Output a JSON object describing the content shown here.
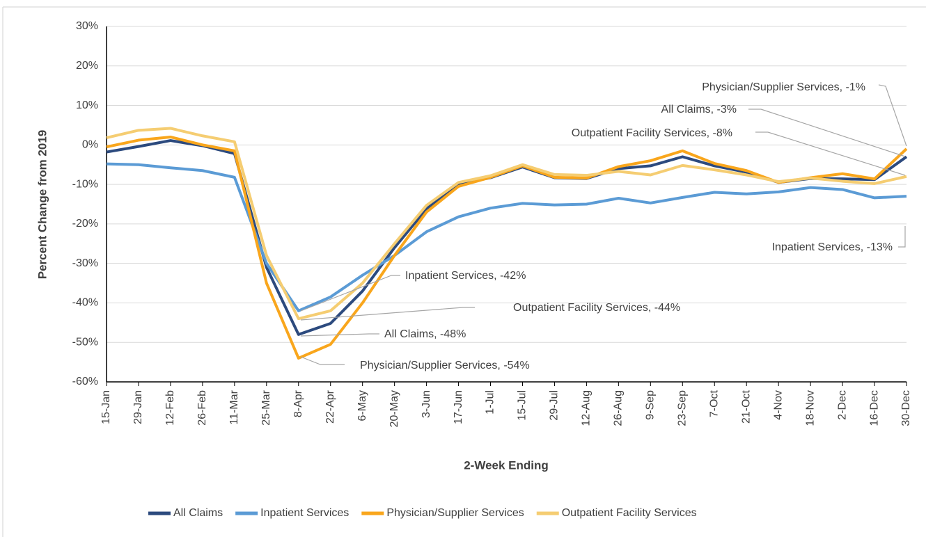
{
  "chart_data": {
    "type": "line",
    "y_label": "Percent Change from 2019",
    "x_label": "2-Week Ending",
    "categories": [
      "15-Jan",
      "29-Jan",
      "12-Feb",
      "26-Feb",
      "11-Mar",
      "25-Mar",
      "8-Apr",
      "22-Apr",
      "6-May",
      "20-May",
      "3-Jun",
      "17-Jun",
      "1-Jul",
      "15-Jul",
      "29-Jul",
      "12-Aug",
      "26-Aug",
      "9-Sep",
      "23-Sep",
      "7-Oct",
      "21-Oct",
      "4-Nov",
      "18-Nov",
      "2-Dec",
      "16-Dec",
      "30-Dec"
    ],
    "series": [
      {
        "name": "All Claims",
        "color": "#2c4a7e",
        "values": [
          -1.8,
          -0.4,
          1.1,
          -0.2,
          -2.2,
          -31,
          -48,
          -45.2,
          -37,
          -26,
          -16.2,
          -10,
          -8.3,
          -5.6,
          -8.3,
          -8.5,
          -6,
          -5.3,
          -3,
          -5.3,
          -6.9,
          -9.5,
          -8.5,
          -8.6,
          -8.8,
          -3
        ]
      },
      {
        "name": "Inpatient Services",
        "color": "#5b9bd5",
        "values": [
          -4.8,
          -5,
          -5.8,
          -6.5,
          -8.2,
          -30,
          -42,
          -38.5,
          -33,
          -28,
          -22,
          -18.2,
          -16,
          -14.8,
          -15.2,
          -15,
          -13.5,
          -14.7,
          -13.3,
          -12,
          -12.4,
          -11.9,
          -10.8,
          -11.3,
          -13.4,
          -13
        ]
      },
      {
        "name": "Physician/Supplier Services",
        "color": "#f9a61c",
        "values": [
          -0.5,
          1.2,
          2,
          0,
          -1.5,
          -35,
          -54,
          -50.5,
          -40,
          -28,
          -17,
          -10.5,
          -8.2,
          -5.3,
          -8.2,
          -8.4,
          -5.5,
          -4,
          -1.5,
          -4.7,
          -6.5,
          -9.5,
          -8.3,
          -7.3,
          -8.6,
          -1
        ]
      },
      {
        "name": "Outpatient Facility Services",
        "color": "#f5cd72",
        "values": [
          1.8,
          3.7,
          4.2,
          2.3,
          0.8,
          -28,
          -44,
          -42,
          -35,
          -25,
          -15.3,
          -9.5,
          -7.8,
          -5,
          -7.5,
          -7.7,
          -6.7,
          -7.6,
          -5.2,
          -6.3,
          -7.6,
          -9.3,
          -8.4,
          -9.2,
          -9.8,
          -8
        ]
      }
    ],
    "ylim": [
      -60,
      30
    ],
    "yticks": [
      {
        "value": -60,
        "label": "-60%"
      },
      {
        "value": -50,
        "label": "-50%"
      },
      {
        "value": -40,
        "label": "-40%"
      },
      {
        "value": -30,
        "label": "-30%"
      },
      {
        "value": -20,
        "label": "-20%"
      },
      {
        "value": -10,
        "label": "-10%"
      },
      {
        "value": 0,
        "label": "0%"
      },
      {
        "value": 10,
        "label": "10%"
      },
      {
        "value": 20,
        "label": "20%"
      },
      {
        "value": 30,
        "label": "30%"
      }
    ],
    "grid": true,
    "legend": "bottom",
    "annotations": [
      "Physician/Supplier Services, -1%",
      "All Claims, -3%",
      "Outpatient Facility Services, -8%",
      "Inpatient Services, -13%",
      "Inpatient Services, -42%",
      "Outpatient Facility Services, -44%",
      "All Claims, -48%",
      "Physician/Supplier Services, -54%"
    ]
  }
}
